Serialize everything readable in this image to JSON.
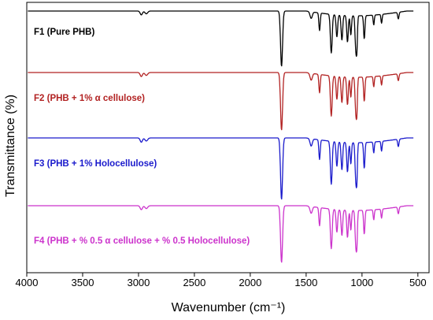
{
  "chart_data": {
    "type": "line",
    "title": "",
    "xlabel": "Wavenumber (cm⁻¹)",
    "ylabel": "Transmittance (%)",
    "xlim": [
      4000,
      400
    ],
    "x_reversed": true,
    "xticks": [
      4000,
      3500,
      3000,
      2500,
      2000,
      1500,
      1000,
      500
    ],
    "yticks_shown": false,
    "grid": false,
    "legend": "inline labels at left of each trace",
    "series": [
      {
        "name": "F1 (Pure PHB)",
        "color": "#000000",
        "peaks_cm1": [
          2975,
          2930,
          1720,
          1455,
          1380,
          1275,
          1225,
          1180,
          1130,
          1100,
          1055,
          1045,
          980,
          895,
          825,
          675,
          515
        ]
      },
      {
        "name": "F2 (PHB + 1% α cellulose)",
        "color": "#b22222",
        "peaks_cm1": [
          2975,
          2930,
          1720,
          1455,
          1380,
          1275,
          1225,
          1180,
          1130,
          1100,
          1055,
          1045,
          980,
          895,
          825,
          675,
          515
        ]
      },
      {
        "name": "F3 (PHB + 1% Holocellulose)",
        "color": "#1a1acc",
        "peaks_cm1": [
          2975,
          2930,
          1720,
          1455,
          1380,
          1275,
          1225,
          1180,
          1130,
          1100,
          1055,
          1045,
          980,
          895,
          825,
          675,
          515
        ]
      },
      {
        "name": "F4 (PHB + % 0.5 α cellulose + % 0.5 Holocellulose)",
        "color": "#cc33cc",
        "peaks_cm1": [
          2975,
          2930,
          1720,
          1455,
          1380,
          1275,
          1225,
          1180,
          1130,
          1100,
          1055,
          1045,
          980,
          895,
          825,
          675,
          515
        ]
      }
    ]
  }
}
